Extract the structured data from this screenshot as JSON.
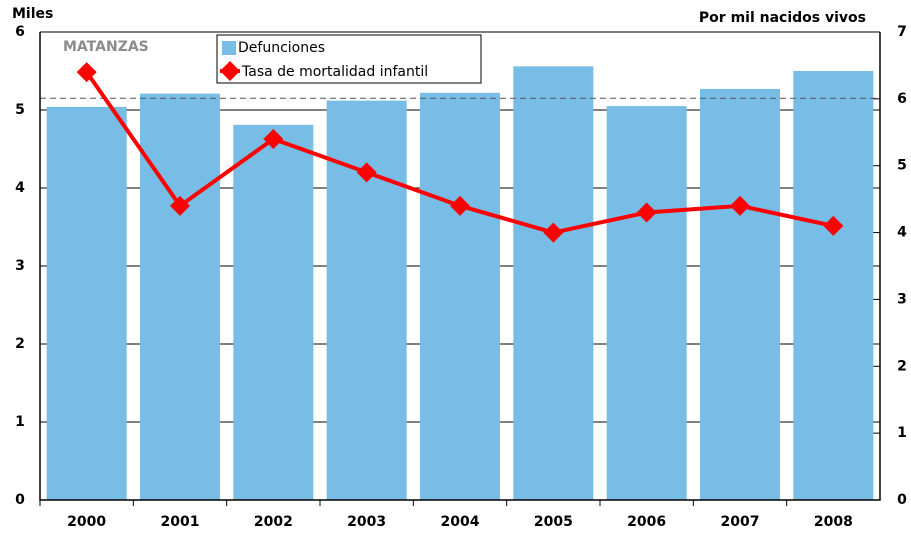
{
  "chart_data": {
    "type": "bar_line",
    "annotation": "MATANZAS",
    "y_label": "Miles",
    "y2_label": "Por mil nacidos vivos",
    "categories": [
      "2000",
      "2001",
      "2002",
      "2003",
      "2004",
      "2005",
      "2006",
      "2007",
      "2008"
    ],
    "series": [
      {
        "name": "Defunciones",
        "color": "#77bde5",
        "type": "bar",
        "values": [
          5.04,
          5.21,
          4.81,
          5.12,
          5.22,
          5.56,
          5.05,
          5.27,
          5.5
        ]
      },
      {
        "name": "Tasa de mortalidad infantil",
        "color": "#ff0000",
        "type": "line",
        "axis": "y2",
        "values": [
          6.4,
          4.4,
          5.4,
          4.9,
          4.4,
          4.0,
          4.3,
          4.4,
          4.1
        ]
      }
    ],
    "reference_line": 5.15,
    "ylim": [
      0,
      6
    ],
    "yticks": [
      0,
      1,
      2,
      3,
      4,
      5,
      6
    ],
    "y2lim": [
      0,
      7
    ],
    "y2ticks": [
      0,
      1,
      2,
      3,
      4,
      5,
      6,
      7
    ],
    "grid": true
  }
}
